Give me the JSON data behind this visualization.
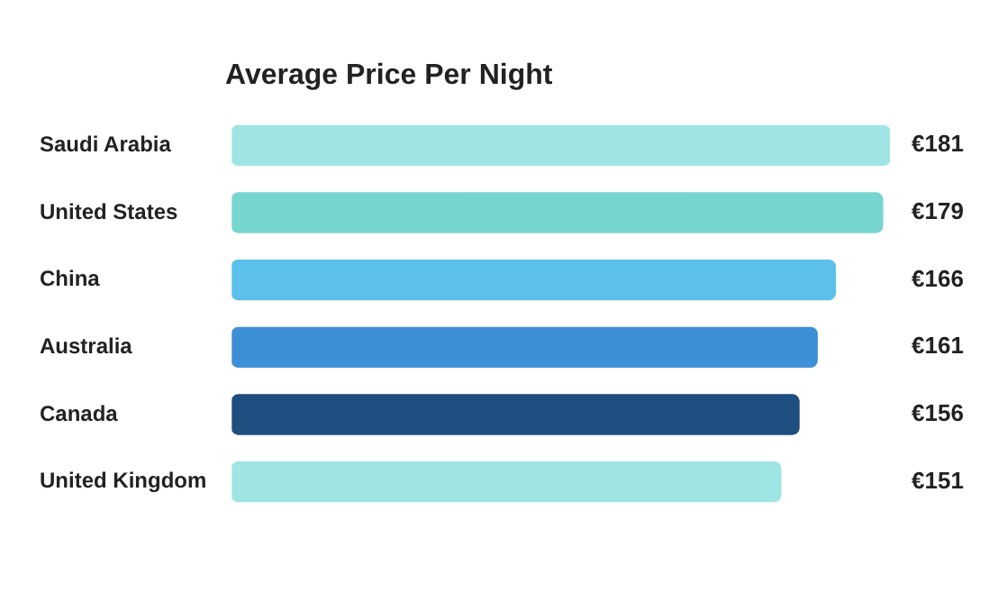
{
  "chart_data": {
    "type": "bar",
    "orientation": "horizontal",
    "title": "Average Price Per Night",
    "categories": [
      "Saudi Arabia",
      "United States",
      "China",
      "Australia",
      "Canada",
      "United Kingdom"
    ],
    "values": [
      181,
      179,
      166,
      161,
      156,
      151
    ],
    "colors": [
      "#9ee5e3",
      "#77d5cf",
      "#5bc0eb",
      "#3d8fd6",
      "#1f4e80",
      "#9ee5e3"
    ],
    "value_labels": [
      "€181",
      "€179",
      "€166",
      "€161",
      "€156",
      "€151"
    ],
    "legend": false
  }
}
